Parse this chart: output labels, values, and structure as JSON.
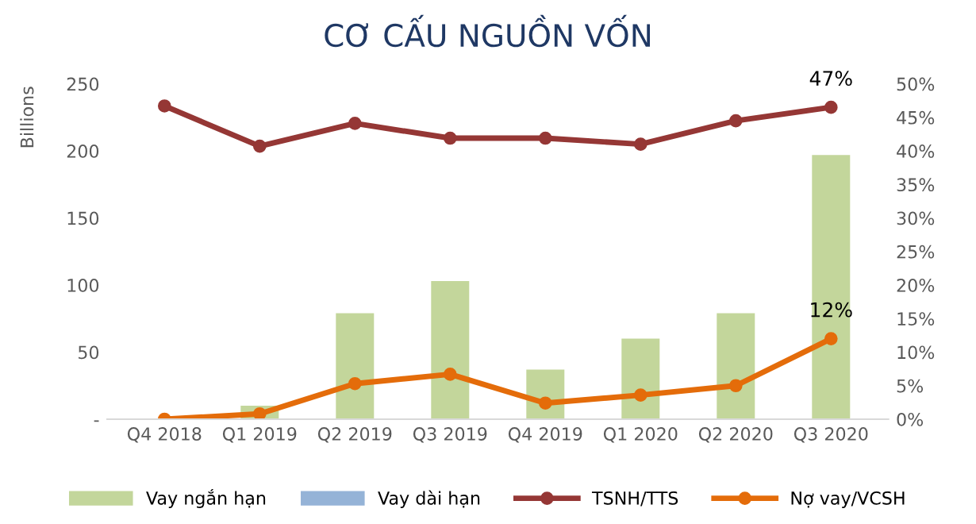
{
  "chart_data": {
    "type": "bar",
    "title": "CƠ CẤU NGUỒN VỐN",
    "ylabel": "Billions",
    "categories": [
      "Q4 2018",
      "Q1 2019",
      "Q2 2019",
      "Q3 2019",
      "Q4 2019",
      "Q1 2020",
      "Q2 2020",
      "Q3 2020"
    ],
    "series": [
      {
        "name": "Vay ngắn hạn",
        "color": "#c3d69b",
        "values": [
          0,
          10,
          79,
          103,
          37,
          60,
          79,
          197
        ]
      },
      {
        "name": "Vay dài hạn",
        "color": "#95b3d7",
        "values": [
          0,
          0,
          0,
          0,
          0,
          0,
          0,
          0
        ]
      },
      {
        "name": "TSNH/TTS",
        "type": "line",
        "axis": "y2",
        "color": "#953735",
        "values": [
          46.7,
          40.7,
          44.1,
          41.9,
          41.9,
          41.0,
          44.5,
          46.5
        ],
        "value_labels": [
          null,
          null,
          null,
          null,
          null,
          null,
          null,
          "47%"
        ]
      },
      {
        "name": "Nợ vay/VCSH",
        "type": "line",
        "axis": "y2",
        "color": "#e46c0a",
        "values": [
          0,
          0.8,
          5.3,
          6.7,
          2.4,
          3.6,
          5.0,
          12.0
        ],
        "value_labels": [
          null,
          null,
          null,
          null,
          null,
          null,
          null,
          "12%"
        ]
      }
    ],
    "ylim": [
      0,
      250
    ],
    "yticks": [
      {
        "value": 0,
        "label": "-"
      },
      50,
      100,
      150,
      200,
      250
    ],
    "y2lim": [
      0,
      50
    ],
    "y2ticks": [
      {
        "value": 0,
        "label": "0%"
      },
      {
        "value": 5,
        "label": "5%"
      },
      {
        "value": 10,
        "label": "10%"
      },
      {
        "value": 15,
        "label": "15%"
      },
      {
        "value": 20,
        "label": "20%"
      },
      {
        "value": 25,
        "label": "25%"
      },
      {
        "value": 30,
        "label": "30%"
      },
      {
        "value": 35,
        "label": "35%"
      },
      {
        "value": 40,
        "label": "40%"
      },
      {
        "value": 45,
        "label": "45%"
      },
      {
        "value": 50,
        "label": "50%"
      }
    ],
    "marker": "circle",
    "grid": false,
    "legend": "bottom"
  }
}
